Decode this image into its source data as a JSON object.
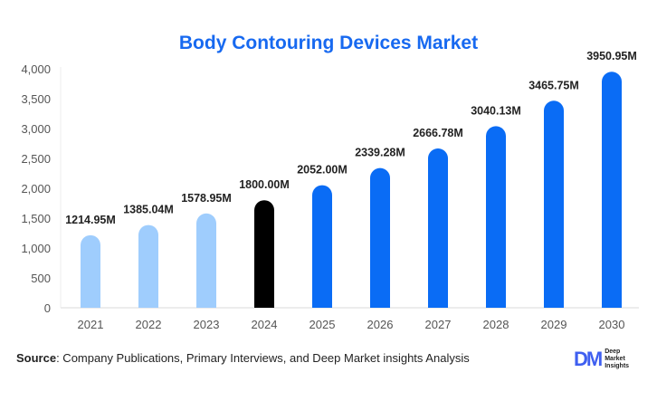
{
  "chart_data": {
    "type": "bar",
    "title": "Body Contouring Devices Market",
    "categories": [
      "2021",
      "2022",
      "2023",
      "2024",
      "2025",
      "2026",
      "2027",
      "2028",
      "2029",
      "2030"
    ],
    "values": [
      1214.95,
      1385.04,
      1578.95,
      1800.0,
      2052.0,
      2339.28,
      2666.78,
      3040.13,
      3465.75,
      3950.95
    ],
    "data_labels": [
      "1214.95M",
      "1385.04M",
      "1578.95M",
      "1800.00M",
      "2052.00M",
      "2339.28M",
      "2666.78M",
      "3040.13M",
      "3465.75M",
      "3950.95M"
    ],
    "ylim": [
      0,
      4000
    ],
    "yticks": [
      "0",
      "500",
      "1,000",
      "1,500",
      "2,000",
      "2,500",
      "3,000",
      "3,500",
      "4,000"
    ],
    "grid": false,
    "colors": {
      "historical": "#9fcdfd",
      "base_year": "#000000",
      "forecast": "#0a6cf5",
      "title": "#1769f0"
    },
    "bar_color_groups": [
      "historical",
      "historical",
      "historical",
      "base_year",
      "forecast",
      "forecast",
      "forecast",
      "forecast",
      "forecast",
      "forecast"
    ]
  },
  "source": {
    "label": "Source",
    "text": ": Company Publications, Primary Interviews, and Deep Market insights Analysis"
  },
  "logo": {
    "mark": "DM",
    "lines": [
      "Deep",
      "Market",
      "Insights"
    ]
  }
}
